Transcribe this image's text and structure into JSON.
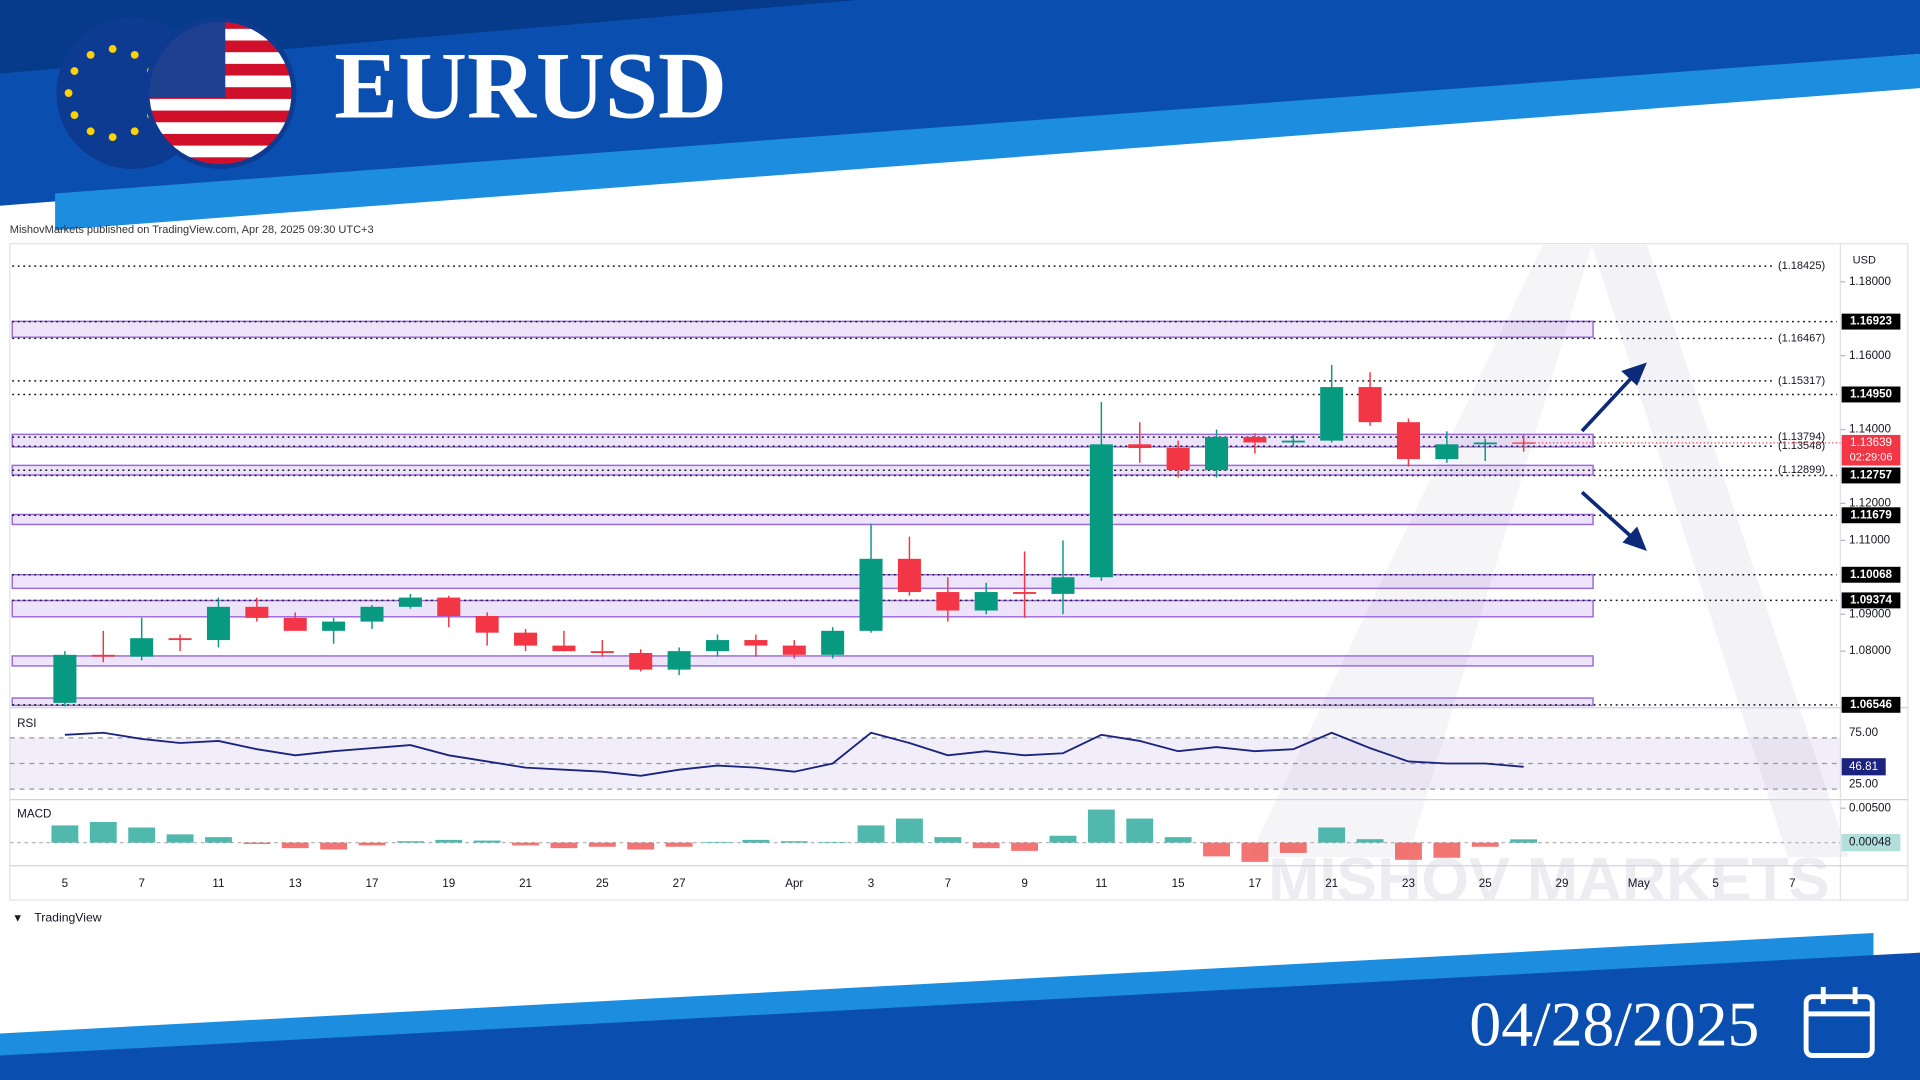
{
  "header": {
    "title": "EURUSD",
    "date": "04/28/2025"
  },
  "published": "MishovMarkets published on TradingView.com, Apr 28, 2025 09:30 UTC+3",
  "watermark": "MISHOV MARKETS",
  "logo": "TradingView",
  "chart_data": [
    {
      "type": "candlestick",
      "currency": "USD",
      "categories": [
        "5",
        null,
        "7",
        null,
        "11",
        null,
        "13",
        null,
        "17",
        null,
        "19",
        null,
        "21",
        null,
        "25",
        null,
        "27",
        null,
        null,
        "Apr",
        null,
        "3",
        null,
        "7",
        null,
        "9",
        null,
        "11",
        null,
        "15",
        null,
        "17",
        null,
        "21",
        null,
        "23",
        null,
        "25",
        null,
        "29",
        null,
        "May",
        null,
        "5",
        null,
        "7"
      ],
      "open": [
        1.066,
        1.079,
        1.0785,
        1.0835,
        1.083,
        1.092,
        1.089,
        1.0855,
        1.088,
        1.092,
        1.0945,
        1.0895,
        1.085,
        1.0815,
        1.08,
        1.0795,
        1.075,
        1.08,
        1.083,
        1.0815,
        1.079,
        1.0855,
        1.105,
        1.096,
        1.091,
        1.096,
        1.0955,
        1.1,
        1.136,
        1.135,
        1.129,
        1.138,
        1.1365,
        1.137,
        1.1515,
        1.142,
        1.132,
        1.136,
        1.1365,
        null,
        null,
        null,
        null,
        null,
        null,
        null
      ],
      "high": [
        1.08,
        1.0855,
        1.089,
        1.0845,
        1.0945,
        1.0945,
        1.0905,
        1.089,
        1.0925,
        1.0955,
        1.095,
        1.0905,
        1.086,
        1.0855,
        1.083,
        1.0805,
        1.081,
        1.0845,
        1.0845,
        1.083,
        1.0865,
        1.1145,
        1.111,
        1.1,
        1.0985,
        1.107,
        1.11,
        1.1475,
        1.142,
        1.137,
        1.14,
        1.139,
        1.1385,
        1.1575,
        1.1555,
        1.143,
        1.1395,
        1.1375,
        1.1385,
        null,
        null,
        null,
        null,
        null,
        null,
        null
      ],
      "low": [
        1.065,
        1.077,
        1.0775,
        1.08,
        1.081,
        1.088,
        1.0855,
        1.082,
        1.086,
        1.0915,
        1.0865,
        1.0815,
        1.08,
        1.08,
        1.0785,
        1.0745,
        1.0735,
        1.0785,
        1.0785,
        1.078,
        1.078,
        1.085,
        1.095,
        1.088,
        1.09,
        1.089,
        1.09,
        1.099,
        1.131,
        1.127,
        1.127,
        1.1335,
        1.1355,
        1.1365,
        1.141,
        1.13,
        1.131,
        1.1315,
        1.134,
        null,
        null,
        null,
        null,
        null,
        null,
        null
      ],
      "close": [
        1.079,
        1.0785,
        1.0835,
        1.083,
        1.092,
        1.089,
        1.0855,
        1.088,
        1.092,
        1.0945,
        1.0895,
        1.085,
        1.0815,
        1.08,
        1.0795,
        1.075,
        1.08,
        1.083,
        1.0815,
        1.079,
        1.0855,
        1.105,
        1.096,
        1.091,
        1.096,
        1.0955,
        1.1,
        1.136,
        1.135,
        1.129,
        1.138,
        1.1365,
        1.137,
        1.1515,
        1.142,
        1.132,
        1.136,
        1.1365,
        1.13639,
        null,
        null,
        null,
        null,
        null,
        null,
        null
      ],
      "up_color": "#089981",
      "down_color": "#f23645",
      "countdown": "02:29:06",
      "ylim": [
        1.065,
        1.19
      ],
      "yticks": [
        {
          "value": 1.18,
          "label": "1.18000"
        },
        {
          "value": 1.16,
          "label": "1.16000"
        },
        {
          "value": 1.14,
          "label": "1.14000"
        },
        {
          "value": 1.12,
          "label": "1.12000"
        },
        {
          "value": 1.11,
          "label": "1.11000"
        },
        {
          "value": 1.09,
          "label": "1.09000"
        },
        {
          "value": 1.08,
          "label": "1.08000"
        }
      ],
      "levels": [
        {
          "value": 1.18425,
          "label": "(1.18425)",
          "style": "note"
        },
        {
          "value": 1.16923,
          "label": "1.16923",
          "style": "box"
        },
        {
          "value": 1.16467,
          "label": "(1.16467)",
          "style": "note"
        },
        {
          "value": 1.15317,
          "label": "(1.15317)",
          "style": "note"
        },
        {
          "value": 1.1495,
          "label": "1.14950",
          "style": "box"
        },
        {
          "value": 1.13794,
          "label": "(1.13794)",
          "style": "note"
        },
        {
          "value": 1.13548,
          "label": "(1.13548)",
          "style": "note"
        },
        {
          "value": 1.12899,
          "label": "(1.12899)",
          "style": "note"
        },
        {
          "value": 1.12757,
          "label": "1.12757",
          "style": "box"
        },
        {
          "value": 1.11679,
          "label": "1.11679",
          "style": "box"
        },
        {
          "value": 1.10068,
          "label": "1.10068",
          "style": "box"
        },
        {
          "value": 1.09374,
          "label": "1.09374",
          "style": "box"
        },
        {
          "value": 1.06546,
          "label": "1.06546",
          "style": "box"
        }
      ],
      "zones": [
        {
          "low": 1.165,
          "high": 1.1693
        },
        {
          "low": 1.1353,
          "high": 1.1387
        },
        {
          "low": 1.1277,
          "high": 1.1303
        },
        {
          "low": 1.1143,
          "high": 1.117
        },
        {
          "low": 1.097,
          "high": 1.1007
        },
        {
          "low": 1.0893,
          "high": 1.0937
        },
        {
          "low": 1.076,
          "high": 1.0787
        },
        {
          "low": 1.0653,
          "high": 1.0673
        }
      ],
      "zone_color": "#9c6ade"
    },
    {
      "type": "line",
      "title": "RSI",
      "color": "#1a237e",
      "values": [
        78,
        80,
        74,
        70,
        72,
        64,
        58,
        62,
        65,
        68,
        58,
        52,
        46,
        44,
        42,
        38,
        44,
        48,
        46,
        42,
        50,
        80,
        70,
        58,
        62,
        58,
        60,
        78,
        72,
        62,
        66,
        62,
        64,
        80,
        65,
        52,
        50,
        50,
        46.81,
        null,
        null,
        null,
        null,
        null,
        null,
        null
      ],
      "ylim": [
        16,
        102
      ],
      "yticks": [
        {
          "value": 75,
          "label": "75.00"
        },
        {
          "value": 25,
          "label": "25.00"
        }
      ]
    },
    {
      "type": "bar",
      "title": "MACD",
      "up_color": "#26a69a",
      "down_color": "#ef5350",
      "values": [
        0.0025,
        0.003,
        0.0022,
        0.0012,
        0.0008,
        -0.0002,
        -0.0008,
        -0.001,
        -0.0004,
        0.0002,
        0.0004,
        0.0003,
        -0.0004,
        -0.0008,
        -0.0006,
        -0.001,
        -0.0006,
        0.0001,
        0.0004,
        0.0002,
        0.0001,
        0.0025,
        0.0035,
        0.0008,
        -0.0008,
        -0.0012,
        0.001,
        0.0048,
        0.0035,
        0.0008,
        -0.002,
        -0.0028,
        -0.0015,
        0.0022,
        0.0005,
        -0.0025,
        -0.0022,
        -0.0006,
        0.00048,
        null,
        null,
        null,
        null,
        null,
        null,
        null
      ],
      "ylim": [
        -0.003,
        0.0059
      ],
      "yticks": [
        {
          "value": 0.005,
          "label": "0.00500"
        }
      ]
    }
  ]
}
